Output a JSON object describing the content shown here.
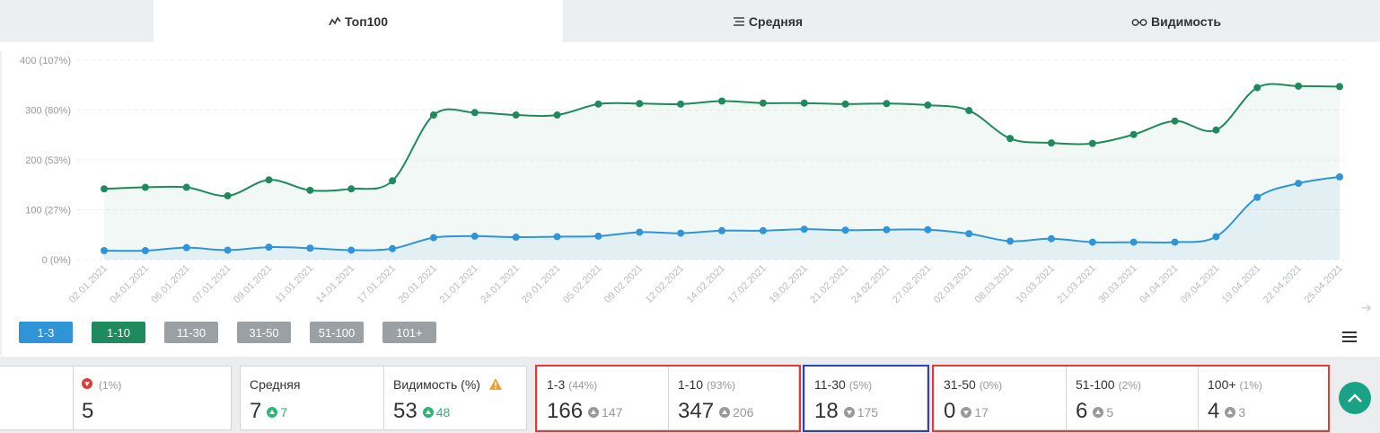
{
  "tabs": [
    {
      "label": "Топ100",
      "icon": "trend-icon"
    },
    {
      "label": "Средняя",
      "icon": "list-icon"
    },
    {
      "label": "Видимость",
      "icon": "glasses-icon"
    }
  ],
  "chart_data": {
    "type": "line",
    "x": [
      "02.01.2021",
      "04.01.2021",
      "06.01.2021",
      "07.01.2021",
      "09.01.2021",
      "11.01.2021",
      "14.01.2021",
      "17.01.2021",
      "20.01.2021",
      "21.01.2021",
      "24.01.2021",
      "29.01.2021",
      "05.02.2021",
      "09.02.2021",
      "12.02.2021",
      "14.02.2021",
      "17.02.2021",
      "19.02.2021",
      "21.02.2021",
      "24.02.2021",
      "27.02.2021",
      "02.03.2021",
      "08.03.2021",
      "10.03.2021",
      "21.03.2021",
      "30.03.2021",
      "04.04.2021",
      "09.04.2021",
      "19.04.2021",
      "22.04.2021",
      "25.04.2021"
    ],
    "yticks": [
      "0 (0%)",
      "100 (27%)",
      "200 (53%)",
      "300 (80%)",
      "400 (107%)"
    ],
    "ylim": [
      0,
      400
    ],
    "grid": true,
    "series": [
      {
        "name": "1-10",
        "color": "#1e8a5e",
        "values": [
          142,
          145,
          145,
          128,
          160,
          139,
          142,
          158,
          290,
          295,
          290,
          290,
          312,
          313,
          312,
          318,
          314,
          314,
          312,
          313,
          310,
          299,
          243,
          234,
          233,
          251,
          278,
          260,
          345,
          348,
          347
        ]
      },
      {
        "name": "1-3",
        "color": "#2f95d8",
        "values": [
          18,
          18,
          24,
          19,
          25,
          23,
          19,
          22,
          44,
          47,
          45,
          46,
          47,
          55,
          53,
          58,
          58,
          61,
          59,
          60,
          60,
          52,
          37,
          42,
          35,
          35,
          35,
          46,
          125,
          153,
          166
        ]
      }
    ]
  },
  "legend": [
    {
      "label": "1-3",
      "color": "#2f95d8"
    },
    {
      "label": "1-10",
      "color": "#1e8a5e"
    },
    {
      "label": "11-30",
      "color": "#9aa0a3"
    },
    {
      "label": "31-50",
      "color": "#9aa0a3"
    },
    {
      "label": "51-100",
      "color": "#9aa0a3"
    },
    {
      "label": "101+",
      "color": "#9aa0a3"
    }
  ],
  "stats": {
    "first": {
      "pct": "(1%)",
      "value": "5"
    },
    "avg": {
      "label": "Средняя",
      "value": "7",
      "delta": "7"
    },
    "vis": {
      "label": "Видимость (%)",
      "value": "53",
      "delta": "48"
    },
    "g1": {
      "label": "1-3",
      "pct": "(44%)",
      "value": "166",
      "delta": "147"
    },
    "g2": {
      "label": "1-10",
      "pct": "(93%)",
      "value": "347",
      "delta": "206"
    },
    "g3": {
      "label": "11-30",
      "pct": "(5%)",
      "value": "18",
      "delta": "175"
    },
    "g4": {
      "label": "31-50",
      "pct": "(0%)",
      "value": "0",
      "delta": "17"
    },
    "g5": {
      "label": "51-100",
      "pct": "(2%)",
      "value": "6",
      "delta": "5"
    },
    "g6": {
      "label": "100+",
      "pct": "(1%)",
      "value": "4",
      "delta": "3"
    }
  }
}
